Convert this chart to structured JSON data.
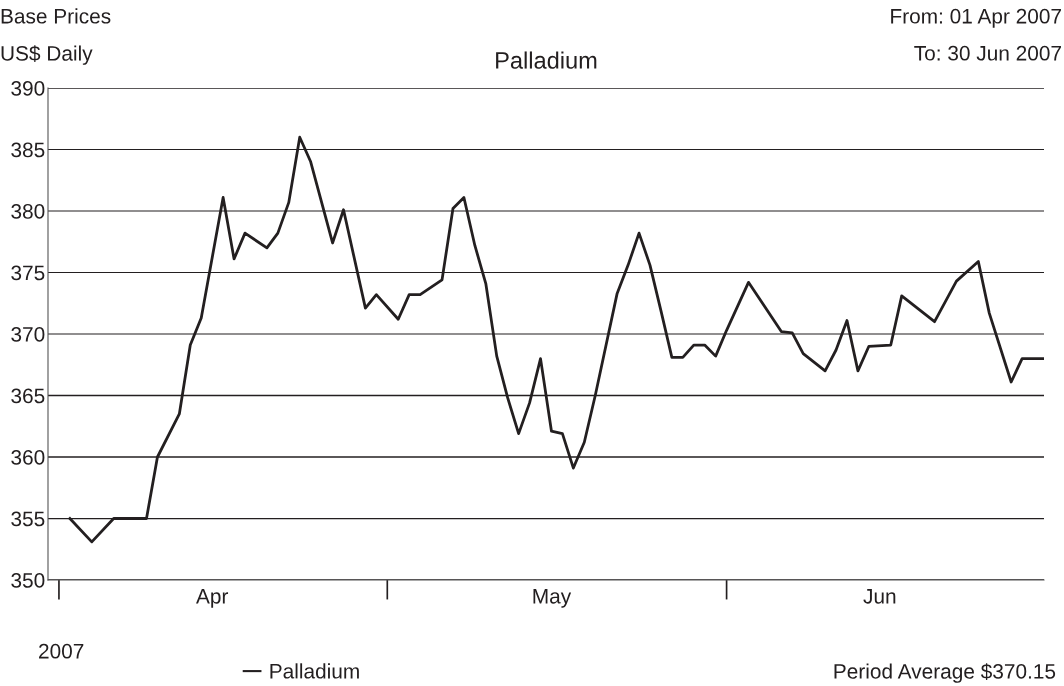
{
  "chart_data": {
    "type": "line",
    "title": "Palladium",
    "annotations": [
      "Base Prices",
      "US$ Daily",
      "From: 01 Apr 2007",
      "To: 30 Jun 2007",
      "2007",
      "Period Average $370.15"
    ],
    "x": [
      "2007-04-02",
      "2007-04-04",
      "2007-04-06",
      "2007-04-09",
      "2007-04-10",
      "2007-04-12",
      "2007-04-13",
      "2007-04-14",
      "2007-04-16",
      "2007-04-17",
      "2007-04-18",
      "2007-04-20",
      "2007-04-21",
      "2007-04-22",
      "2007-04-23",
      "2007-04-24",
      "2007-04-26",
      "2007-04-27",
      "2007-04-29",
      "2007-04-30",
      "2007-05-02",
      "2007-05-03",
      "2007-05-04",
      "2007-05-06",
      "2007-05-07",
      "2007-05-08",
      "2007-05-09",
      "2007-05-10",
      "2007-05-11",
      "2007-05-12",
      "2007-05-13",
      "2007-05-14",
      "2007-05-15",
      "2007-05-16",
      "2007-05-17",
      "2007-05-18",
      "2007-05-19",
      "2007-05-20",
      "2007-05-22",
      "2007-05-23",
      "2007-05-24",
      "2007-05-25",
      "2007-05-26",
      "2007-05-27",
      "2007-05-28",
      "2007-05-29",
      "2007-05-30",
      "2007-05-31",
      "2007-06-01",
      "2007-06-03",
      "2007-06-06",
      "2007-06-07",
      "2007-06-08",
      "2007-06-10",
      "2007-06-11",
      "2007-06-12",
      "2007-06-13",
      "2007-06-14",
      "2007-06-16",
      "2007-06-17",
      "2007-06-20",
      "2007-06-22",
      "2007-06-24",
      "2007-06-25",
      "2007-06-27",
      "2007-06-28",
      "2007-06-30"
    ],
    "series": [
      {
        "name": "Palladium",
        "color": "#231f20",
        "values": [
          355,
          353.1,
          355,
          355,
          360,
          363.5,
          369.1,
          371.3,
          381.1,
          376.1,
          378.2,
          377,
          378.2,
          380.7,
          386,
          384,
          377.4,
          380.1,
          372.1,
          373.2,
          371.2,
          373.2,
          373.2,
          374.4,
          380.2,
          381.1,
          377.2,
          374.1,
          368.2,
          364.8,
          361.9,
          364.4,
          368,
          362.1,
          361.9,
          359.1,
          361.2,
          365,
          373.3,
          375.6,
          378.2,
          375.6,
          371.9,
          368.1,
          368.1,
          369.1,
          369.1,
          368.2,
          370.3,
          374.2,
          370.2,
          370.1,
          368.4,
          367,
          368.7,
          371.1,
          367,
          369,
          369.1,
          373.1,
          371,
          374.3,
          375.9,
          371.7,
          366.1,
          368,
          368
        ]
      }
    ],
    "xlim": [
      "2007-03-31",
      "2007-06-30"
    ],
    "xticks": [
      {
        "value": "2007-04-15",
        "label": "Apr"
      },
      {
        "value": "2007-05-16",
        "label": "May"
      },
      {
        "value": "2007-06-15",
        "label": "Jun"
      }
    ],
    "ylim": [
      350,
      390
    ],
    "yticks": [
      350,
      355,
      360,
      365,
      370,
      375,
      380,
      385,
      390
    ],
    "grid": "y",
    "legend": "bottom",
    "marker": "none",
    "line_style": "solid"
  }
}
